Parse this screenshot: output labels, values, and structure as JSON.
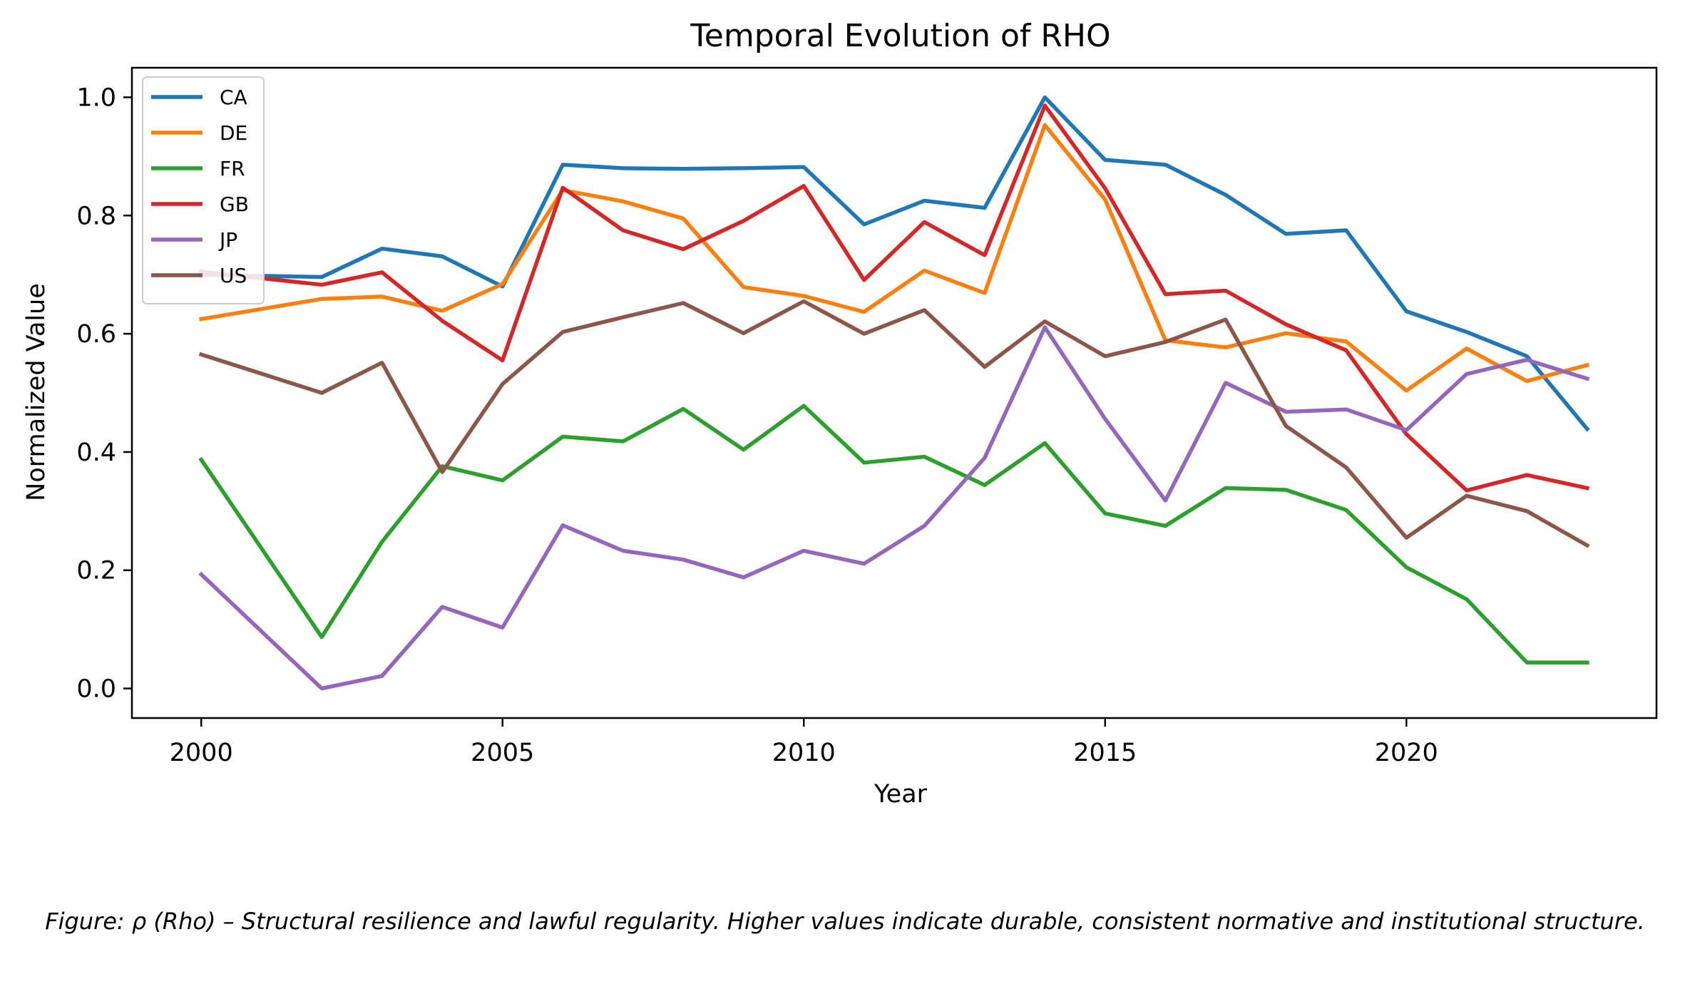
{
  "chart_data": {
    "type": "line",
    "title": "Temporal Evolution of RHO",
    "xlabel": "Year",
    "ylabel": "Normalized Value",
    "xlim": [
      1998.85,
      2024.15
    ],
    "ylim": [
      -0.05,
      1.05
    ],
    "xticks": [
      2000,
      2005,
      2010,
      2015,
      2020
    ],
    "yticks": [
      0.0,
      0.2,
      0.4,
      0.6,
      0.8,
      1.0
    ],
    "ytick_labels": [
      "0.0",
      "0.2",
      "0.4",
      "0.6",
      "0.8",
      "1.0"
    ],
    "grid": false,
    "legend_position": "top-left",
    "x": [
      2000,
      2002,
      2003,
      2004,
      2005,
      2006,
      2007,
      2008,
      2009,
      2010,
      2011,
      2012,
      2013,
      2014,
      2015,
      2016,
      2017,
      2018,
      2019,
      2020,
      2021,
      2022,
      2023
    ],
    "series": [
      {
        "name": "CA",
        "color": "#1f77b4",
        "values": [
          0.7,
          0.696,
          0.744,
          0.731,
          0.68,
          0.886,
          0.88,
          0.879,
          0.88,
          0.882,
          0.785,
          0.825,
          0.813,
          1.0,
          0.894,
          0.886,
          0.835,
          0.769,
          0.775,
          0.638,
          0.603,
          0.562,
          0.439
        ]
      },
      {
        "name": "DE",
        "color": "#ff7f0e",
        "values": [
          0.625,
          0.659,
          0.663,
          0.639,
          0.684,
          0.843,
          0.824,
          0.795,
          0.679,
          0.664,
          0.637,
          0.707,
          0.669,
          0.953,
          0.827,
          0.589,
          0.577,
          0.601,
          0.587,
          0.504,
          0.575,
          0.52,
          0.547
        ]
      },
      {
        "name": "FR",
        "color": "#2ca02c",
        "values": [
          0.387,
          0.087,
          0.248,
          0.376,
          0.352,
          0.426,
          0.418,
          0.473,
          0.404,
          0.478,
          0.382,
          0.392,
          0.344,
          0.415,
          0.296,
          0.275,
          0.339,
          0.336,
          0.302,
          0.205,
          0.151,
          0.044,
          0.044
        ]
      },
      {
        "name": "GB",
        "color": "#d62728",
        "values": [
          0.705,
          0.683,
          0.704,
          0.622,
          0.555,
          0.847,
          0.775,
          0.743,
          0.791,
          0.85,
          0.691,
          0.789,
          0.733,
          0.986,
          0.846,
          0.667,
          0.673,
          0.616,
          0.572,
          0.43,
          0.335,
          0.361,
          0.339
        ]
      },
      {
        "name": "JP",
        "color": "#9467bd",
        "values": [
          0.193,
          0.0,
          0.021,
          0.138,
          0.103,
          0.276,
          0.233,
          0.218,
          0.188,
          0.233,
          0.211,
          0.275,
          0.39,
          0.611,
          0.456,
          0.318,
          0.517,
          0.468,
          0.472,
          0.437,
          0.532,
          0.556,
          0.524
        ]
      },
      {
        "name": "US",
        "color": "#8c564b",
        "values": [
          0.565,
          0.5,
          0.551,
          0.366,
          0.515,
          0.603,
          0.628,
          0.652,
          0.601,
          0.655,
          0.6,
          0.64,
          0.544,
          0.621,
          0.562,
          0.586,
          0.624,
          0.444,
          0.374,
          0.255,
          0.326,
          0.3,
          0.242
        ]
      }
    ]
  },
  "caption": "Figure: ρ (Rho) – Structural resilience and lawful regularity. Higher values indicate durable, consistent normative and institutional structure."
}
